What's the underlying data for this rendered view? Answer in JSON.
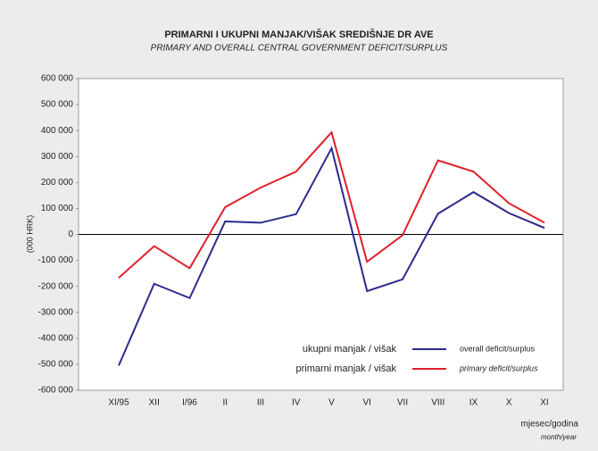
{
  "chart_data": {
    "type": "line",
    "title": "PRIMARNI I UKUPNI MANJAK/VIŠAK SREDIŠNJE DR  AVE",
    "subtitle": "PRIMARY AND OVERALL CENTRAL GOVERNMENT DEFICIT/SURPLUS",
    "y_label": "(000 HRK)",
    "x_label": "mjesec/godina",
    "x_label_en": "month/year",
    "categories": [
      "XI/95",
      "XII",
      "I/96",
      "II",
      "III",
      "IV",
      "V",
      "VI",
      "VII",
      "VIII",
      "IX",
      "X",
      "XI"
    ],
    "series": [
      {
        "name": "ukupni manjak / višak",
        "name_en": "overall deficit/surplus",
        "color": "#2b2a8c",
        "values": [
          -505000,
          -190000,
          -245000,
          50000,
          45000,
          78000,
          332000,
          -218000,
          -173000,
          80000,
          163000,
          82000,
          25000
        ]
      },
      {
        "name": "primarni manjak / višak",
        "name_en": "primary deficit/surplus",
        "color": "#e0202a",
        "values": [
          -167000,
          -45000,
          -130000,
          105000,
          180000,
          242000,
          393000,
          -105000,
          -3000,
          285000,
          242000,
          120000,
          45000
        ]
      }
    ],
    "ylim": [
      -600000,
      600000
    ],
    "yticks": [
      {
        "value": 600000,
        "label": "600 000"
      },
      {
        "value": 500000,
        "label": "500 000"
      },
      {
        "value": 400000,
        "label": "400 000"
      },
      {
        "value": 300000,
        "label": "300 000"
      },
      {
        "value": 200000,
        "label": "200 000"
      },
      {
        "value": 100000,
        "label": "100 000"
      },
      0,
      {
        "value": -100000,
        "label": "-100 000"
      },
      {
        "value": -200000,
        "label": "-200 000"
      },
      {
        "value": -300000,
        "label": "-300 000"
      },
      {
        "value": -400000,
        "label": "-400 000"
      },
      {
        "value": -500000,
        "label": "-500 000"
      },
      {
        "value": -600000,
        "label": "-600 000"
      }
    ]
  }
}
